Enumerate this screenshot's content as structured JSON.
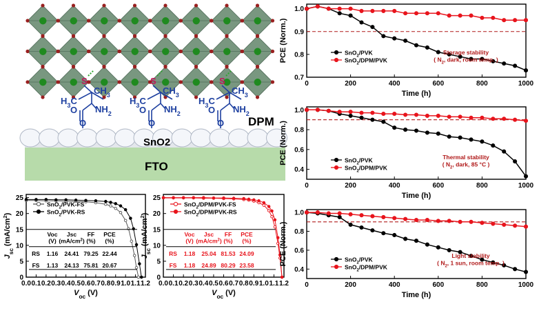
{
  "schematic": {
    "sulfur": "S",
    "ch3_left": "H3C",
    "ch3_right": "CH3",
    "amine": "NH2",
    "oxygen": "O",
    "dpm_label": "DPM",
    "sno2_label": "SnO2",
    "fto_label": "FTO",
    "colors": {
      "octahedron": "#6b8c73",
      "octahedron_edge": "#3f5c48",
      "a_site": "#1f8a1f",
      "x_site": "#9a2020",
      "molecule": "#1e40a0",
      "sulfur": "#c0185a",
      "fto": "#b7dbaa"
    }
  },
  "chart_data": [
    {
      "id": "jv-pvk",
      "type": "line",
      "xlabel": "Voc (V)",
      "ylabel": "Jsc (mA/cm2)",
      "xlim": [
        0,
        1.2
      ],
      "ylim": [
        0,
        26
      ],
      "xticks": [
        "0.0",
        "0.1",
        "0.2",
        "0.3",
        "0.4",
        "0.5",
        "0.6",
        "0.7",
        "0.8",
        "0.9",
        "1.0",
        "1.1",
        "1.2"
      ],
      "yticks": [
        "0",
        "5",
        "10",
        "15",
        "20",
        "25"
      ],
      "series": [
        {
          "name": "SnO2/PVK-FS",
          "color": "#555555",
          "marker": "open-circle",
          "x": [
            0,
            0.1,
            0.2,
            0.3,
            0.4,
            0.5,
            0.6,
            0.7,
            0.8,
            0.85,
            0.9,
            0.95,
            1.0,
            1.03,
            1.06,
            1.09,
            1.11,
            1.13
          ],
          "y": [
            24.1,
            24.1,
            24.0,
            24.0,
            23.9,
            23.8,
            23.7,
            23.4,
            22.9,
            22.4,
            21.6,
            20.3,
            17.8,
            15.2,
            11.3,
            6.8,
            3.0,
            0
          ]
        },
        {
          "name": "SnO2/PVK-RS",
          "color": "#000000",
          "marker": "filled-circle",
          "x": [
            0,
            0.1,
            0.2,
            0.3,
            0.4,
            0.5,
            0.6,
            0.7,
            0.8,
            0.85,
            0.9,
            0.95,
            1.0,
            1.05,
            1.08,
            1.11,
            1.14,
            1.16
          ],
          "y": [
            24.4,
            24.4,
            24.4,
            24.3,
            24.3,
            24.2,
            24.1,
            24.0,
            23.8,
            23.5,
            23.1,
            22.4,
            21.2,
            18.5,
            15.2,
            10.2,
            4.2,
            0
          ]
        }
      ],
      "table": {
        "headers": [
          "",
          "Voc\n(V)",
          "Jsc\n(mA/cm2)",
          "FF\n(%)",
          "PCE\n(%)"
        ],
        "rows": [
          [
            "RS",
            "1.16",
            "24.41",
            "79.25",
            "22.44"
          ],
          [
            "FS",
            "1.13",
            "24.13",
            "75.81",
            "20.67"
          ]
        ]
      }
    },
    {
      "id": "jv-dpm",
      "type": "line",
      "xlabel": "Voc (V)",
      "ylabel": "Jsc (mA/cm2)",
      "xlim": [
        0,
        1.2
      ],
      "ylim": [
        0,
        26
      ],
      "xticks": [
        "0.0",
        "0.1",
        "0.2",
        "0.3",
        "0.4",
        "0.5",
        "0.6",
        "0.7",
        "0.8",
        "0.9",
        "1.0",
        "1.1",
        "1.2"
      ],
      "yticks": [
        "0",
        "5",
        "10",
        "15",
        "20",
        "25"
      ],
      "series": [
        {
          "name": "SnO2/DPM/PVK-FS",
          "color": "#e8141c",
          "marker": "open-circle",
          "x": [
            0,
            0.1,
            0.2,
            0.3,
            0.4,
            0.5,
            0.6,
            0.7,
            0.8,
            0.85,
            0.9,
            0.95,
            1.0,
            1.05,
            1.08,
            1.11,
            1.14,
            1.16,
            1.18
          ],
          "y": [
            24.9,
            24.9,
            24.9,
            24.9,
            24.8,
            24.8,
            24.7,
            24.6,
            24.4,
            24.2,
            23.9,
            23.4,
            22.6,
            20.9,
            19.0,
            15.8,
            10.6,
            6.0,
            0
          ]
        },
        {
          "name": "SnO2/DPM/PVK-RS",
          "color": "#e8141c",
          "marker": "filled-circle",
          "x": [
            0,
            0.1,
            0.2,
            0.3,
            0.4,
            0.5,
            0.6,
            0.7,
            0.8,
            0.85,
            0.9,
            0.95,
            1.0,
            1.05,
            1.08,
            1.11,
            1.14,
            1.16,
            1.18
          ],
          "y": [
            25.0,
            25.0,
            25.0,
            25.0,
            25.0,
            24.9,
            24.9,
            24.8,
            24.7,
            24.5,
            24.3,
            24.0,
            23.4,
            22.2,
            20.8,
            18.0,
            12.4,
            7.0,
            0
          ]
        }
      ],
      "table": {
        "headers": [
          "",
          "Voc\n(V)",
          "Jsc\n(mA/cm2)",
          "FF\n(%)",
          "PCE\n(%)"
        ],
        "rows": [
          [
            "RS",
            "1.18",
            "25.04",
            "81.53",
            "24.09"
          ],
          [
            "FS",
            "1.18",
            "24.89",
            "80.29",
            "23.58"
          ]
        ]
      }
    },
    {
      "id": "storage",
      "type": "line",
      "annotation": [
        "Storage stability",
        "( N2, dark, room temp. )"
      ],
      "xlabel": "Time (h)",
      "ylabel": "PCE (Norm.)",
      "xlim": [
        0,
        1000
      ],
      "ylim": [
        0.7,
        1.02
      ],
      "threshold": 0.9,
      "xticks": [
        "0",
        "200",
        "400",
        "600",
        "800",
        "1000"
      ],
      "yticks": [
        "0.7",
        "0.8",
        "0.9",
        "1.0"
      ],
      "series": [
        {
          "name": "SnO2/PVK",
          "color": "#000000",
          "x": [
            0,
            50,
            100,
            150,
            200,
            250,
            300,
            350,
            400,
            450,
            500,
            550,
            600,
            650,
            700,
            750,
            800,
            850,
            900,
            950,
            1000
          ],
          "y": [
            1.0,
            1.01,
            1.0,
            0.98,
            0.97,
            0.94,
            0.92,
            0.88,
            0.87,
            0.86,
            0.84,
            0.83,
            0.81,
            0.8,
            0.79,
            0.78,
            0.78,
            0.77,
            0.76,
            0.75,
            0.73
          ]
        },
        {
          "name": "SnO2/DPM/PVK",
          "color": "#e8141c",
          "x": [
            0,
            50,
            100,
            150,
            200,
            250,
            300,
            350,
            400,
            450,
            500,
            550,
            600,
            650,
            700,
            750,
            800,
            850,
            900,
            950,
            1000
          ],
          "y": [
            1.0,
            1.01,
            1.0,
            1.0,
            1.0,
            0.99,
            0.99,
            0.99,
            0.99,
            0.98,
            0.98,
            0.98,
            0.98,
            0.97,
            0.97,
            0.97,
            0.96,
            0.96,
            0.95,
            0.95,
            0.95
          ]
        }
      ]
    },
    {
      "id": "thermal",
      "type": "line",
      "annotation": [
        "Thermal stability",
        "( N2, dark, 85 °C )"
      ],
      "xlabel": "Time (h)",
      "ylabel": "PCE (Norm.)",
      "xlim": [
        0,
        1000
      ],
      "ylim": [
        0.3,
        1.03
      ],
      "threshold": 0.9,
      "xticks": [
        "0",
        "200",
        "400",
        "600",
        "800",
        "1000"
      ],
      "yticks": [
        "0.4",
        "0.6",
        "0.8",
        "1.0"
      ],
      "series": [
        {
          "name": "SnO2/PVK",
          "color": "#000000",
          "x": [
            0,
            50,
            100,
            150,
            200,
            250,
            300,
            350,
            400,
            450,
            500,
            550,
            600,
            650,
            700,
            750,
            800,
            850,
            900,
            950,
            1000
          ],
          "y": [
            1.0,
            1.0,
            0.99,
            0.96,
            0.94,
            0.92,
            0.9,
            0.88,
            0.82,
            0.8,
            0.79,
            0.77,
            0.76,
            0.73,
            0.72,
            0.7,
            0.68,
            0.64,
            0.58,
            0.48,
            0.33
          ]
        },
        {
          "name": "SnO2/DPM/PVK",
          "color": "#e8141c",
          "x": [
            0,
            50,
            100,
            150,
            200,
            250,
            300,
            350,
            400,
            450,
            500,
            550,
            600,
            650,
            700,
            750,
            800,
            850,
            900,
            950,
            1000
          ],
          "y": [
            1.0,
            1.0,
            0.99,
            0.98,
            0.98,
            0.97,
            0.97,
            0.96,
            0.96,
            0.95,
            0.95,
            0.94,
            0.94,
            0.93,
            0.93,
            0.92,
            0.92,
            0.91,
            0.91,
            0.9,
            0.89
          ]
        }
      ]
    },
    {
      "id": "light",
      "type": "line",
      "annotation": [
        "Light stability",
        "( N2, 1 sun, room temp. )"
      ],
      "xlabel": "Time (h)",
      "ylabel": "PCE (Norm.)",
      "xlim": [
        0,
        1000
      ],
      "ylim": [
        0.3,
        1.03
      ],
      "threshold": 0.9,
      "xticks": [
        "0",
        "200",
        "400",
        "600",
        "800",
        "1000"
      ],
      "yticks": [
        "0.4",
        "0.6",
        "0.8",
        "1.0"
      ],
      "series": [
        {
          "name": "SnO2/PVK",
          "color": "#000000",
          "x": [
            0,
            50,
            100,
            150,
            200,
            250,
            300,
            350,
            400,
            450,
            500,
            550,
            600,
            650,
            700,
            750,
            800,
            850,
            900,
            950,
            1000
          ],
          "y": [
            1.0,
            0.99,
            0.97,
            0.95,
            0.87,
            0.84,
            0.81,
            0.78,
            0.76,
            0.72,
            0.7,
            0.66,
            0.63,
            0.6,
            0.58,
            0.54,
            0.5,
            0.47,
            0.44,
            0.4,
            0.37
          ]
        },
        {
          "name": "SnO2/DPM/PVK",
          "color": "#e8141c",
          "x": [
            0,
            50,
            100,
            150,
            200,
            250,
            300,
            350,
            400,
            450,
            500,
            550,
            600,
            650,
            700,
            750,
            800,
            850,
            900,
            950,
            1000
          ],
          "y": [
            1.0,
            1.0,
            0.99,
            0.99,
            0.98,
            0.97,
            0.96,
            0.95,
            0.94,
            0.93,
            0.92,
            0.92,
            0.91,
            0.91,
            0.9,
            0.9,
            0.89,
            0.88,
            0.87,
            0.86,
            0.85
          ]
        }
      ]
    }
  ]
}
